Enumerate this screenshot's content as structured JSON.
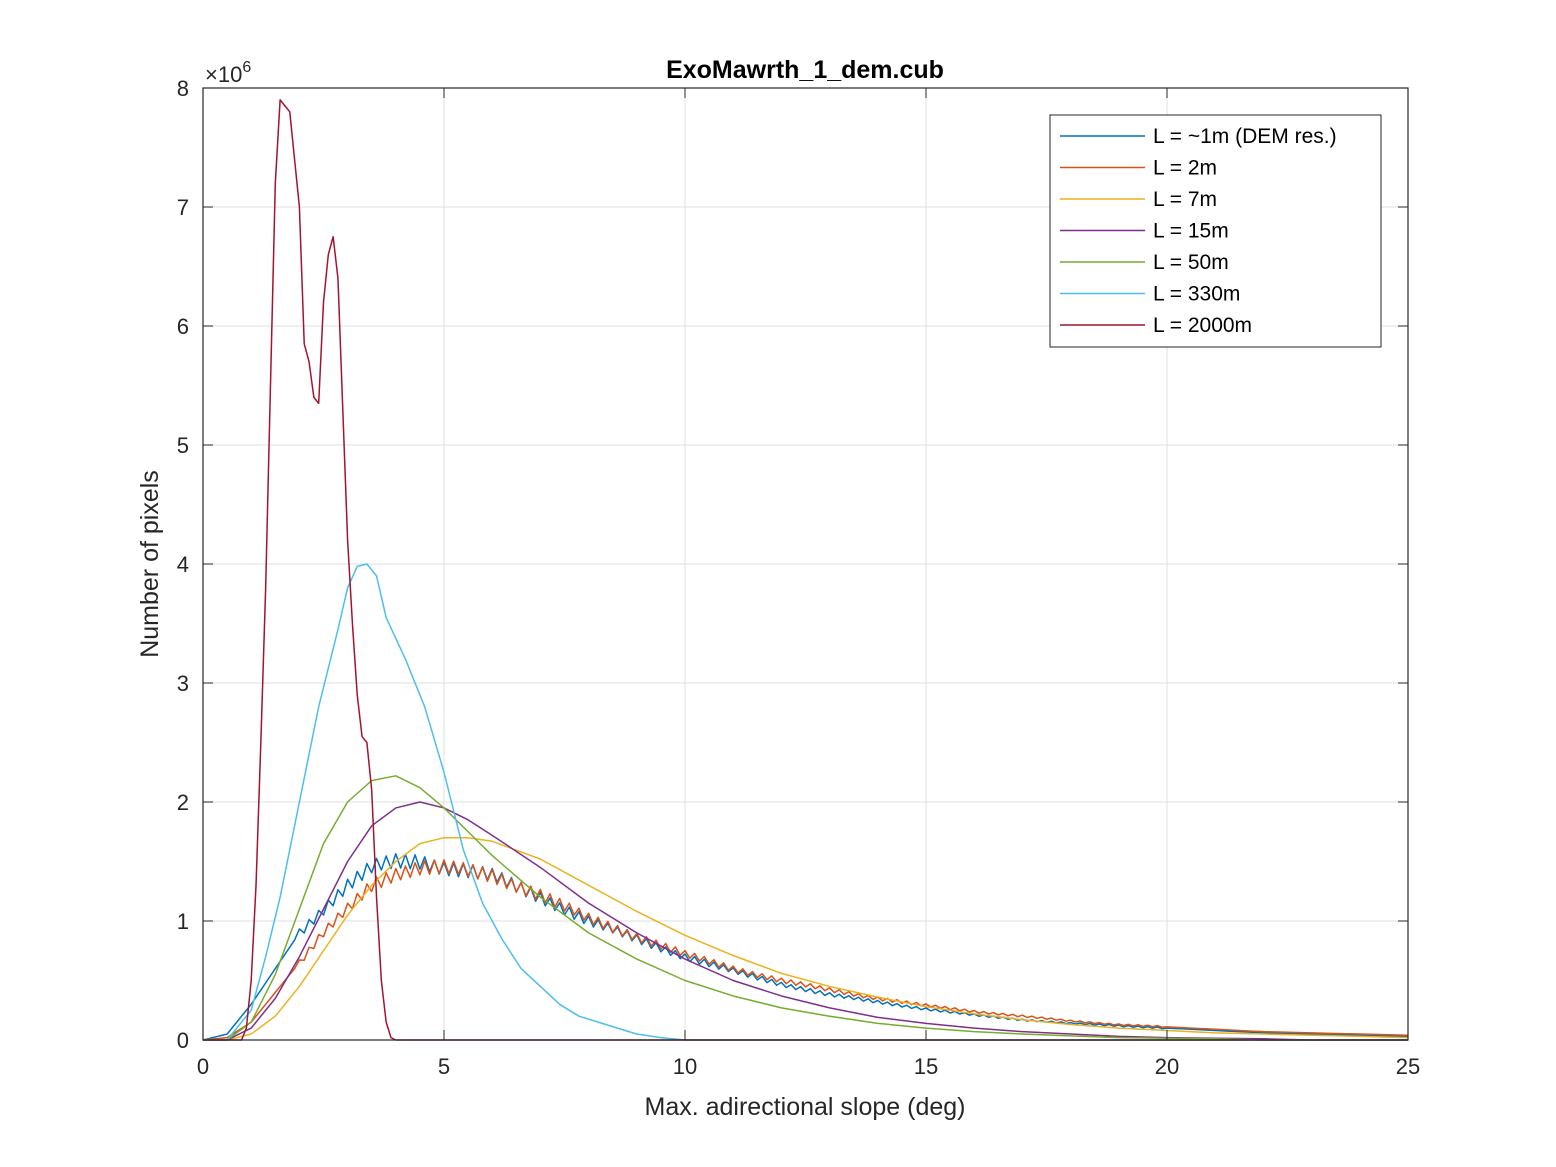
{
  "chart_data": {
    "type": "line",
    "title": "ExoMawrth_1_dem.cub",
    "xlabel": "Max. adirectional slope (deg)",
    "ylabel": "Number of pixels",
    "y_exponent_base": "×10",
    "y_exponent_power": "6",
    "xlim": [
      0,
      25
    ],
    "ylim": [
      0,
      8
    ],
    "xticks": [
      0,
      5,
      10,
      15,
      20,
      25
    ],
    "xtick_labels": [
      "0",
      "5",
      "10",
      "15",
      "20",
      "25"
    ],
    "yticks": [
      0,
      1,
      2,
      3,
      4,
      5,
      6,
      7,
      8
    ],
    "ytick_labels": [
      "0",
      "1",
      "2",
      "3",
      "4",
      "5",
      "6",
      "7",
      "8"
    ],
    "grid": true,
    "legend_position": "top-right",
    "series": [
      {
        "name": "L = ~1m (DEM res.)",
        "color": "#0072bd",
        "noisy": true,
        "x": [
          0,
          0.5,
          1,
          1.5,
          2,
          2.5,
          3,
          3.5,
          4,
          4.5,
          5,
          5.5,
          6,
          7,
          8,
          9,
          10,
          11,
          12,
          13,
          14,
          15,
          16,
          17,
          18,
          19,
          20,
          21,
          22,
          23,
          24,
          25
        ],
        "y": [
          0,
          0.05,
          0.3,
          0.6,
          0.9,
          1.1,
          1.3,
          1.45,
          1.5,
          1.5,
          1.45,
          1.42,
          1.38,
          1.2,
          1.0,
          0.85,
          0.7,
          0.58,
          0.47,
          0.38,
          0.32,
          0.26,
          0.21,
          0.17,
          0.14,
          0.12,
          0.1,
          0.08,
          0.06,
          0.05,
          0.04,
          0.03
        ]
      },
      {
        "name": "L = 2m",
        "color": "#d95319",
        "noisy": true,
        "x": [
          0,
          0.5,
          1,
          1.5,
          2,
          2.5,
          3,
          3.5,
          4,
          4.5,
          5,
          5.5,
          6,
          7,
          8,
          9,
          10,
          11,
          12,
          13,
          14,
          15,
          16,
          17,
          18,
          19,
          20,
          21,
          22,
          23,
          24,
          25
        ],
        "y": [
          0,
          0.02,
          0.15,
          0.4,
          0.65,
          0.9,
          1.1,
          1.3,
          1.4,
          1.45,
          1.45,
          1.42,
          1.38,
          1.22,
          1.02,
          0.87,
          0.72,
          0.6,
          0.5,
          0.42,
          0.35,
          0.29,
          0.24,
          0.2,
          0.16,
          0.13,
          0.11,
          0.09,
          0.07,
          0.06,
          0.05,
          0.04
        ]
      },
      {
        "name": "L = 7m",
        "color": "#edb120",
        "noisy": false,
        "x": [
          0,
          0.5,
          1,
          1.5,
          2,
          2.5,
          3,
          3.5,
          4,
          4.5,
          5,
          5.5,
          6,
          7,
          8,
          9,
          10,
          11,
          12,
          13,
          14,
          15,
          16,
          17,
          18,
          19,
          20,
          21,
          22,
          23,
          24,
          25
        ],
        "y": [
          0,
          0.0,
          0.05,
          0.2,
          0.45,
          0.75,
          1.05,
          1.3,
          1.5,
          1.65,
          1.7,
          1.7,
          1.67,
          1.52,
          1.3,
          1.08,
          0.88,
          0.71,
          0.56,
          0.45,
          0.36,
          0.28,
          0.22,
          0.17,
          0.13,
          0.1,
          0.08,
          0.06,
          0.05,
          0.04,
          0.03,
          0.02
        ]
      },
      {
        "name": "L = 15m",
        "color": "#7e2f8e",
        "noisy": false,
        "x": [
          0,
          0.5,
          1,
          1.5,
          2,
          2.5,
          3,
          3.5,
          4,
          4.5,
          5,
          5.5,
          6,
          7,
          8,
          9,
          10,
          11,
          12,
          13,
          14,
          15,
          16,
          17,
          18,
          19,
          20,
          21,
          22,
          23,
          24,
          25
        ],
        "y": [
          0,
          0.0,
          0.1,
          0.35,
          0.7,
          1.1,
          1.5,
          1.8,
          1.95,
          2.0,
          1.95,
          1.85,
          1.72,
          1.45,
          1.15,
          0.9,
          0.68,
          0.5,
          0.37,
          0.27,
          0.19,
          0.14,
          0.1,
          0.07,
          0.05,
          0.03,
          0.02,
          0.015,
          0.01,
          0.0,
          0.0,
          0.0
        ]
      },
      {
        "name": "L = 50m",
        "color": "#77ac30",
        "noisy": false,
        "x": [
          0,
          0.5,
          1,
          1.5,
          2,
          2.5,
          3,
          3.5,
          4,
          4.5,
          5,
          5.5,
          6,
          7,
          8,
          9,
          10,
          11,
          12,
          13,
          14,
          15,
          16,
          17,
          18,
          19,
          20,
          21,
          22,
          23,
          24,
          25
        ],
        "y": [
          0,
          0.0,
          0.15,
          0.55,
          1.1,
          1.65,
          2.0,
          2.18,
          2.22,
          2.12,
          1.95,
          1.75,
          1.55,
          1.2,
          0.9,
          0.68,
          0.5,
          0.37,
          0.27,
          0.2,
          0.14,
          0.1,
          0.07,
          0.05,
          0.035,
          0.02,
          0.015,
          0.01,
          0.0,
          0.0,
          0.0,
          0.0
        ]
      },
      {
        "name": "L = 330m",
        "color": "#4dbeee",
        "noisy": false,
        "x": [
          0,
          0.5,
          1,
          1.3,
          1.6,
          2,
          2.4,
          2.8,
          3.0,
          3.2,
          3.4,
          3.6,
          3.8,
          4.2,
          4.6,
          5.0,
          5.4,
          5.8,
          6.2,
          6.6,
          7.0,
          7.4,
          7.8,
          8.2,
          8.6,
          9.0,
          9.5,
          10,
          11,
          25
        ],
        "y": [
          0,
          0.0,
          0.25,
          0.7,
          1.2,
          2.0,
          2.8,
          3.45,
          3.8,
          3.98,
          4.0,
          3.9,
          3.55,
          3.2,
          2.8,
          2.25,
          1.6,
          1.15,
          0.85,
          0.6,
          0.45,
          0.3,
          0.2,
          0.15,
          0.1,
          0.05,
          0.02,
          0.0,
          0.0,
          0.0
        ]
      },
      {
        "name": "L = 2000m",
        "color": "#a2142f",
        "noisy": false,
        "x": [
          0,
          0.8,
          0.9,
          1.0,
          1.1,
          1.2,
          1.3,
          1.4,
          1.5,
          1.6,
          1.7,
          1.8,
          1.9,
          2.0,
          2.1,
          2.2,
          2.3,
          2.4,
          2.5,
          2.6,
          2.7,
          2.8,
          2.9,
          3.0,
          3.1,
          3.2,
          3.3,
          3.4,
          3.5,
          3.6,
          3.7,
          3.8,
          3.9,
          4.0,
          25
        ],
        "y": [
          0,
          0.0,
          0.1,
          0.5,
          1.3,
          2.5,
          3.8,
          5.5,
          7.2,
          7.9,
          7.85,
          7.8,
          7.4,
          7.0,
          5.85,
          5.7,
          5.4,
          5.35,
          6.2,
          6.6,
          6.75,
          6.4,
          5.3,
          4.2,
          3.5,
          2.9,
          2.55,
          2.5,
          2.1,
          1.2,
          0.5,
          0.15,
          0.02,
          0.0,
          0.0
        ]
      }
    ]
  }
}
